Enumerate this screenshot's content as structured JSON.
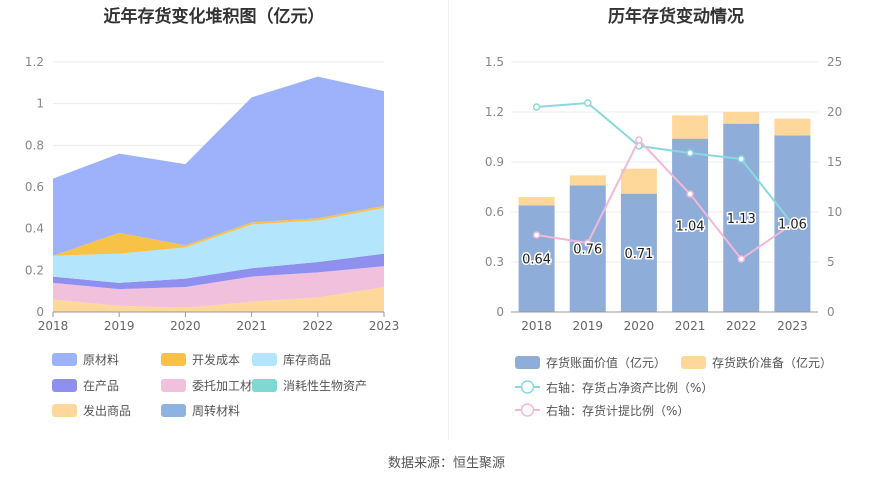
{
  "source_label": "数据来源：恒生聚源",
  "chart_data": [
    {
      "type": "area",
      "stacked": true,
      "title": "近年存货变化堆积图（亿元）",
      "x": [
        "2018",
        "2019",
        "2020",
        "2021",
        "2022",
        "2023"
      ],
      "y_ticks": [
        "0",
        "0.2",
        "0.4",
        "0.6",
        "0.8",
        "1",
        "1.2"
      ],
      "ylim": [
        0,
        1.2
      ],
      "grid": true,
      "legend_position": "bottom",
      "series": [
        {
          "name": "发出商品",
          "color": "#fdd89a",
          "values": [
            0.06,
            0.03,
            0.02,
            0.05,
            0.07,
            0.12
          ]
        },
        {
          "name": "委托加工材料",
          "color": "#f0c0dc",
          "values": [
            0.08,
            0.08,
            0.1,
            0.12,
            0.12,
            0.1
          ]
        },
        {
          "name": "在产品",
          "color": "#8f8ff0",
          "values": [
            0.03,
            0.03,
            0.04,
            0.04,
            0.05,
            0.06
          ]
        },
        {
          "name": "消耗性生物资产",
          "color": "#7fd8d2",
          "values": [
            0.0,
            0.0,
            0.0,
            0.0,
            0.0,
            0.0
          ]
        },
        {
          "name": "周转材料",
          "color": "#8fb3e0",
          "values": [
            0.0,
            0.0,
            0.0,
            0.0,
            0.0,
            0.0
          ]
        },
        {
          "name": "库存商品",
          "color": "#b3e5fc",
          "values": [
            0.1,
            0.14,
            0.15,
            0.21,
            0.2,
            0.22
          ]
        },
        {
          "name": "开发成本",
          "color": "#f8c247",
          "values": [
            0.0,
            0.1,
            0.01,
            0.01,
            0.01,
            0.01
          ]
        },
        {
          "name": "原材料",
          "color": "#9db2fb",
          "values": [
            0.37,
            0.38,
            0.39,
            0.6,
            0.68,
            0.55
          ]
        }
      ],
      "legend": [
        {
          "name": "原材料",
          "color": "#9db2fb"
        },
        {
          "name": "开发成本",
          "color": "#f8c247"
        },
        {
          "name": "库存商品",
          "color": "#b3e5fc"
        },
        {
          "name": "在产品",
          "color": "#8f8ff0"
        },
        {
          "name": "委托加工材料",
          "color": "#f0c0dc"
        },
        {
          "name": "消耗性生物资产",
          "color": "#7fd8d2"
        },
        {
          "name": "发出商品",
          "color": "#fdd89a"
        },
        {
          "name": "周转材料",
          "color": "#8fb3e0"
        }
      ]
    },
    {
      "type": "bar",
      "stacked": true,
      "title": "历年存货变动情况",
      "categories": [
        "2018",
        "2019",
        "2020",
        "2021",
        "2022",
        "2023"
      ],
      "y_left_ticks": [
        "0",
        "0.3",
        "0.6",
        "0.9",
        "1.2",
        "1.5"
      ],
      "y_right_ticks": [
        "0",
        "5",
        "10",
        "15",
        "20",
        "25"
      ],
      "ylim_left": [
        0,
        1.5
      ],
      "ylim_right": [
        0,
        25
      ],
      "grid": true,
      "legend_position": "bottom",
      "series": [
        {
          "name": "存货账面价值（亿元）",
          "color": "#8fadd9",
          "values": [
            0.64,
            0.76,
            0.71,
            1.04,
            1.13,
            1.06
          ],
          "labels": [
            "0.64",
            "0.76",
            "0.71",
            "1.04",
            "1.13",
            "1.06"
          ]
        },
        {
          "name": "存货跌价准备（亿元）",
          "color": "#fdd89a",
          "values": [
            0.05,
            0.06,
            0.15,
            0.14,
            0.07,
            0.1
          ]
        }
      ],
      "lines": [
        {
          "name": "右轴：存货占净资产比例（%）",
          "color": "#8ad9de",
          "values": [
            20.5,
            20.9,
            16.6,
            15.9,
            15.3,
            8.8
          ]
        },
        {
          "name": "右轴：存货计提比例（%）",
          "color": "#f1b8d8",
          "values": [
            7.7,
            6.9,
            17.2,
            11.8,
            5.3,
            8.8
          ]
        }
      ]
    }
  ]
}
